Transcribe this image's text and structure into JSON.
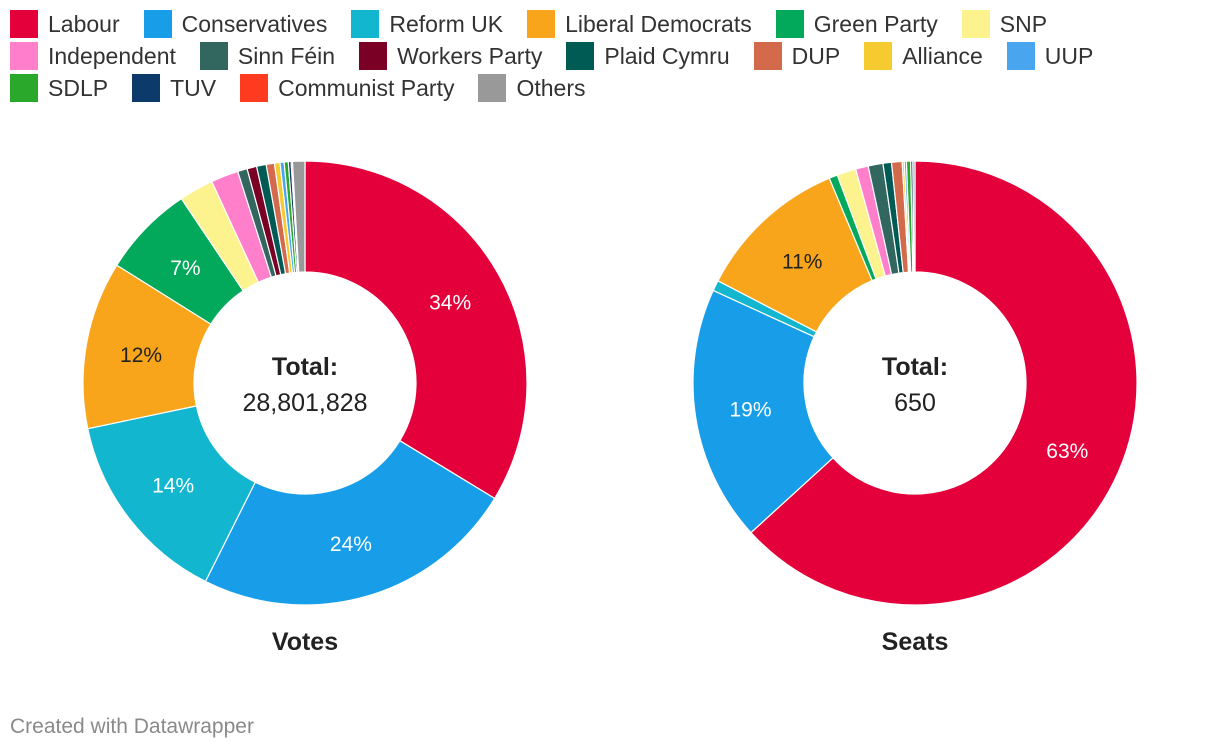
{
  "chart_data": [
    {
      "type": "pie",
      "title": "Votes",
      "center_label": "Total:",
      "center_value": "28,801,828",
      "slices": [
        {
          "party": "Labour",
          "value": 33.7,
          "label": "34%"
        },
        {
          "party": "Conservatives",
          "value": 23.7,
          "label": "24%"
        },
        {
          "party": "Reform UK",
          "value": 14.3,
          "label": "14%"
        },
        {
          "party": "Liberal Democrats",
          "value": 12.2,
          "label": "12%"
        },
        {
          "party": "Green Party",
          "value": 6.7,
          "label": "7%"
        },
        {
          "party": "SNP",
          "value": 2.5,
          "label": ""
        },
        {
          "party": "Independent",
          "value": 2.0,
          "label": ""
        },
        {
          "party": "Sinn Féin",
          "value": 0.7,
          "label": ""
        },
        {
          "party": "Workers Party",
          "value": 0.7,
          "label": ""
        },
        {
          "party": "Plaid Cymru",
          "value": 0.7,
          "label": ""
        },
        {
          "party": "DUP",
          "value": 0.6,
          "label": ""
        },
        {
          "party": "Alliance",
          "value": 0.4,
          "label": ""
        },
        {
          "party": "UUP",
          "value": 0.3,
          "label": ""
        },
        {
          "party": "SDLP",
          "value": 0.3,
          "label": ""
        },
        {
          "party": "TUV",
          "value": 0.2,
          "label": ""
        },
        {
          "party": "Communist Party",
          "value": 0.1,
          "label": ""
        },
        {
          "party": "Others",
          "value": 0.9,
          "label": ""
        }
      ]
    },
    {
      "type": "pie",
      "title": "Seats",
      "center_label": "Total:",
      "center_value": "650",
      "slices": [
        {
          "party": "Labour",
          "value": 411,
          "label": "63%"
        },
        {
          "party": "Conservatives",
          "value": 121,
          "label": "19%"
        },
        {
          "party": "Reform UK",
          "value": 5,
          "label": ""
        },
        {
          "party": "Liberal Democrats",
          "value": 72,
          "label": "11%"
        },
        {
          "party": "Green Party",
          "value": 4,
          "label": ""
        },
        {
          "party": "SNP",
          "value": 9,
          "label": ""
        },
        {
          "party": "Independent",
          "value": 6,
          "label": ""
        },
        {
          "party": "Sinn Féin",
          "value": 7,
          "label": ""
        },
        {
          "party": "Workers Party",
          "value": 0,
          "label": ""
        },
        {
          "party": "Plaid Cymru",
          "value": 4,
          "label": ""
        },
        {
          "party": "DUP",
          "value": 5,
          "label": ""
        },
        {
          "party": "Alliance",
          "value": 1,
          "label": ""
        },
        {
          "party": "UUP",
          "value": 1,
          "label": ""
        },
        {
          "party": "SDLP",
          "value": 2,
          "label": ""
        },
        {
          "party": "TUV",
          "value": 1,
          "label": ""
        },
        {
          "party": "Communist Party",
          "value": 0,
          "label": ""
        },
        {
          "party": "Others",
          "value": 1,
          "label": ""
        }
      ]
    }
  ],
  "legend": [
    [
      {
        "label": "Labour",
        "color": "#e4003b"
      },
      {
        "label": "Conservatives",
        "color": "#189ee8"
      },
      {
        "label": "Reform UK",
        "color": "#12b6cf"
      },
      {
        "label": "Liberal Democrats",
        "color": "#f8a51b"
      },
      {
        "label": "Green Party",
        "color": "#02a95b"
      },
      {
        "label": "SNP",
        "color": "#fdf38e"
      }
    ],
    [
      {
        "label": "Independent",
        "color": "#ff7fcb"
      },
      {
        "label": "Sinn Féin",
        "color": "#326760"
      },
      {
        "label": "Workers Party",
        "color": "#7a0025"
      },
      {
        "label": "Plaid Cymru",
        "color": "#005b54"
      },
      {
        "label": "DUP",
        "color": "#d46a4c"
      },
      {
        "label": "Alliance",
        "color": "#f6cb2f"
      },
      {
        "label": "UUP",
        "color": "#48a5ee"
      }
    ],
    [
      {
        "label": "SDLP",
        "color": "#2aa82c"
      },
      {
        "label": "TUV",
        "color": "#0c3a6a"
      },
      {
        "label": "Communist Party",
        "color": "#ff3b1f"
      },
      {
        "label": "Others",
        "color": "#999999"
      }
    ]
  ],
  "footer": "Created with Datawrapper"
}
